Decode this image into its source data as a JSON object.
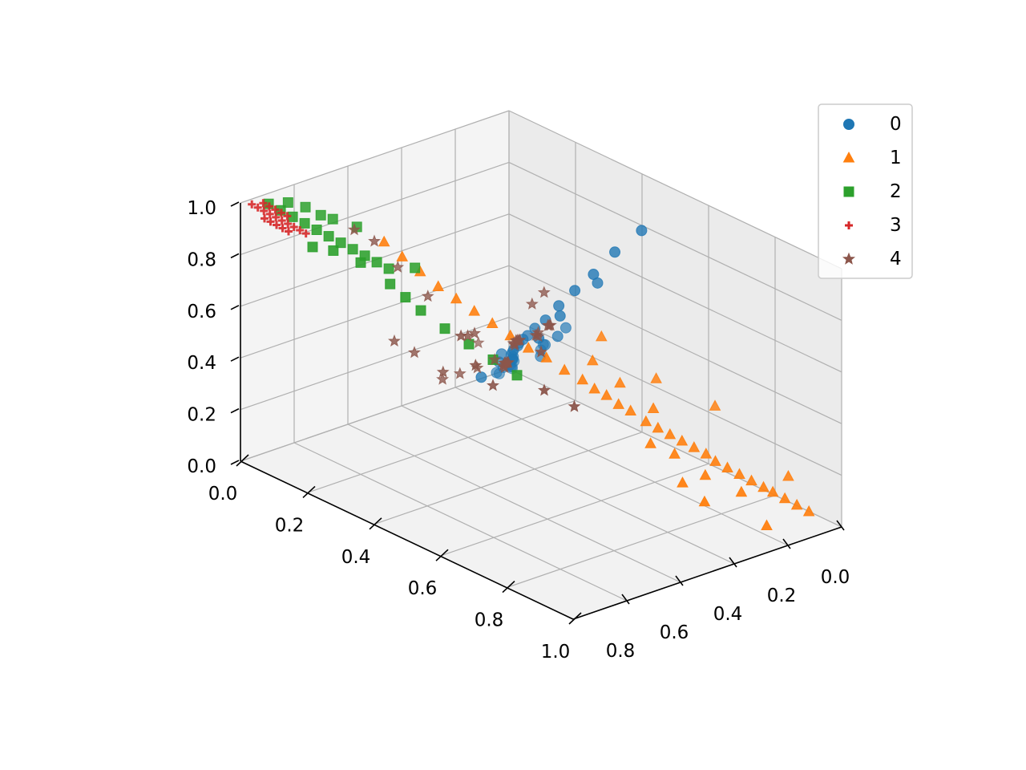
{
  "chart_data": {
    "type": "scatter",
    "projection": "3d",
    "title": "",
    "xlabel": "",
    "ylabel": "",
    "zlabel": "",
    "xlim": [
      0,
      1
    ],
    "ylim": [
      0,
      1
    ],
    "zlim": [
      0,
      1
    ],
    "xticks": [
      "0.0",
      "0.2",
      "0.4",
      "0.6",
      "0.8",
      "1.0"
    ],
    "yticks": [
      "0.0",
      "0.2",
      "0.4",
      "0.6",
      "0.8"
    ],
    "zticks": [
      "0.0",
      "0.2",
      "0.4",
      "0.6",
      "0.8",
      "1.0"
    ],
    "grid": true,
    "legend_position": "top-right",
    "series": [
      {
        "name": "0",
        "marker": "circle",
        "color": "#1f77b4",
        "points": [
          [
            0.05,
            0.05,
            0.05
          ],
          [
            0.07,
            0.08,
            0.08
          ],
          [
            0.09,
            0.1,
            0.1
          ],
          [
            0.1,
            0.12,
            0.12
          ],
          [
            0.12,
            0.13,
            0.15
          ],
          [
            0.13,
            0.15,
            0.17
          ],
          [
            0.15,
            0.17,
            0.2
          ],
          [
            0.16,
            0.19,
            0.22
          ],
          [
            0.18,
            0.21,
            0.25
          ],
          [
            0.2,
            0.23,
            0.28
          ],
          [
            0.22,
            0.24,
            0.31
          ],
          [
            0.24,
            0.26,
            0.34
          ],
          [
            0.26,
            0.27,
            0.37
          ],
          [
            0.29,
            0.29,
            0.41
          ],
          [
            0.32,
            0.3,
            0.46
          ],
          [
            0.36,
            0.31,
            0.52
          ],
          [
            0.4,
            0.31,
            0.6
          ],
          [
            0.44,
            0.3,
            0.68
          ],
          [
            0.48,
            0.28,
            0.76
          ],
          [
            0.52,
            0.25,
            0.86
          ],
          [
            0.56,
            0.2,
            0.95
          ],
          [
            0.12,
            0.17,
            0.14
          ],
          [
            0.18,
            0.26,
            0.23
          ],
          [
            0.22,
            0.3,
            0.3
          ],
          [
            0.16,
            0.08,
            0.2
          ],
          [
            0.2,
            0.12,
            0.26
          ],
          [
            0.27,
            0.2,
            0.33
          ],
          [
            0.31,
            0.37,
            0.36
          ],
          [
            0.28,
            0.45,
            0.3
          ],
          [
            0.24,
            0.18,
            0.26
          ],
          [
            0.34,
            0.24,
            0.42
          ],
          [
            0.38,
            0.36,
            0.48
          ],
          [
            0.14,
            0.22,
            0.15
          ],
          [
            0.1,
            0.16,
            0.1
          ],
          [
            0.3,
            0.16,
            0.4
          ],
          [
            0.26,
            0.33,
            0.3
          ],
          [
            0.42,
            0.33,
            0.58
          ],
          [
            0.46,
            0.24,
            0.7
          ]
        ]
      },
      {
        "name": "1",
        "marker": "triangle",
        "color": "#ff7f0e",
        "points": [
          [
            0.95,
            0.06,
            0.05
          ],
          [
            0.93,
            0.08,
            0.07
          ],
          [
            0.91,
            0.1,
            0.09
          ],
          [
            0.89,
            0.12,
            0.11
          ],
          [
            0.87,
            0.13,
            0.12
          ],
          [
            0.85,
            0.15,
            0.14
          ],
          [
            0.83,
            0.17,
            0.16
          ],
          [
            0.81,
            0.19,
            0.18
          ],
          [
            0.79,
            0.21,
            0.2
          ],
          [
            0.77,
            0.22,
            0.22
          ],
          [
            0.75,
            0.24,
            0.24
          ],
          [
            0.73,
            0.26,
            0.26
          ],
          [
            0.71,
            0.28,
            0.28
          ],
          [
            0.69,
            0.3,
            0.3
          ],
          [
            0.67,
            0.32,
            0.32
          ],
          [
            0.64,
            0.34,
            0.35
          ],
          [
            0.62,
            0.36,
            0.37
          ],
          [
            0.6,
            0.38,
            0.4
          ],
          [
            0.58,
            0.4,
            0.42
          ],
          [
            0.56,
            0.42,
            0.45
          ],
          [
            0.53,
            0.45,
            0.48
          ],
          [
            0.5,
            0.48,
            0.52
          ],
          [
            0.47,
            0.51,
            0.55
          ],
          [
            0.44,
            0.54,
            0.59
          ],
          [
            0.41,
            0.57,
            0.63
          ],
          [
            0.38,
            0.6,
            0.67
          ],
          [
            0.35,
            0.63,
            0.71
          ],
          [
            0.32,
            0.66,
            0.75
          ],
          [
            0.29,
            0.69,
            0.8
          ],
          [
            0.26,
            0.72,
            0.85
          ],
          [
            0.23,
            0.75,
            0.9
          ],
          [
            0.86,
            0.2,
            0.12
          ],
          [
            0.8,
            0.26,
            0.17
          ],
          [
            0.74,
            0.3,
            0.23
          ],
          [
            0.7,
            0.34,
            0.26
          ],
          [
            0.66,
            0.28,
            0.35
          ],
          [
            0.6,
            0.33,
            0.43
          ],
          [
            0.55,
            0.37,
            0.5
          ],
          [
            0.83,
            0.3,
            0.1
          ],
          [
            0.78,
            0.32,
            0.15
          ],
          [
            0.7,
            0.1,
            0.32
          ],
          [
            0.62,
            0.22,
            0.42
          ],
          [
            0.52,
            0.3,
            0.55
          ],
          [
            0.88,
            0.05,
            0.14
          ],
          [
            0.92,
            0.18,
            0.02
          ]
        ]
      },
      {
        "name": "2",
        "marker": "square",
        "color": "#2ca02c",
        "points": [
          [
            0.02,
            0.92,
            0.98
          ],
          [
            0.04,
            0.9,
            0.96
          ],
          [
            0.06,
            0.88,
            0.94
          ],
          [
            0.08,
            0.86,
            0.92
          ],
          [
            0.1,
            0.84,
            0.9
          ],
          [
            0.03,
            0.86,
            0.97
          ],
          [
            0.12,
            0.82,
            0.88
          ],
          [
            0.14,
            0.8,
            0.86
          ],
          [
            0.05,
            0.82,
            0.95
          ],
          [
            0.08,
            0.8,
            0.93
          ],
          [
            0.16,
            0.78,
            0.84
          ],
          [
            0.18,
            0.76,
            0.82
          ],
          [
            0.2,
            0.74,
            0.8
          ],
          [
            0.22,
            0.72,
            0.78
          ],
          [
            0.24,
            0.74,
            0.74
          ],
          [
            0.27,
            0.72,
            0.7
          ],
          [
            0.3,
            0.7,
            0.66
          ],
          [
            0.34,
            0.66,
            0.6
          ],
          [
            0.38,
            0.62,
            0.55
          ],
          [
            0.42,
            0.58,
            0.5
          ],
          [
            0.46,
            0.54,
            0.45
          ],
          [
            0.12,
            0.88,
            0.86
          ],
          [
            0.15,
            0.84,
            0.85
          ],
          [
            0.1,
            0.78,
            0.92
          ],
          [
            0.14,
            0.74,
            0.9
          ],
          [
            0.2,
            0.8,
            0.82
          ],
          [
            0.25,
            0.66,
            0.78
          ]
        ]
      },
      {
        "name": "3",
        "marker": "plus",
        "color": "#d62728",
        "points": [
          [
            0.01,
            0.97,
            0.99
          ],
          [
            0.02,
            0.96,
            0.98
          ],
          [
            0.03,
            0.95,
            0.97
          ],
          [
            0.04,
            0.94,
            0.96
          ],
          [
            0.05,
            0.93,
            0.95
          ],
          [
            0.06,
            0.92,
            0.94
          ],
          [
            0.07,
            0.91,
            0.93
          ],
          [
            0.02,
            0.94,
            0.99
          ],
          [
            0.03,
            0.93,
            0.98
          ],
          [
            0.04,
            0.92,
            0.97
          ],
          [
            0.05,
            0.91,
            0.96
          ],
          [
            0.06,
            0.9,
            0.95
          ],
          [
            0.08,
            0.9,
            0.92
          ],
          [
            0.09,
            0.89,
            0.91
          ],
          [
            0.1,
            0.88,
            0.9
          ],
          [
            0.04,
            0.96,
            0.95
          ],
          [
            0.05,
            0.95,
            0.94
          ],
          [
            0.06,
            0.94,
            0.93
          ],
          [
            0.07,
            0.93,
            0.92
          ],
          [
            0.08,
            0.92,
            0.91
          ]
        ]
      },
      {
        "name": "4",
        "marker": "star",
        "color": "#8c564b",
        "points": [
          [
            0.3,
            0.35,
            0.4
          ],
          [
            0.32,
            0.38,
            0.43
          ],
          [
            0.34,
            0.4,
            0.45
          ],
          [
            0.36,
            0.42,
            0.48
          ],
          [
            0.38,
            0.44,
            0.5
          ],
          [
            0.4,
            0.46,
            0.52
          ],
          [
            0.42,
            0.48,
            0.54
          ],
          [
            0.35,
            0.45,
            0.38
          ],
          [
            0.37,
            0.48,
            0.41
          ],
          [
            0.39,
            0.5,
            0.44
          ],
          [
            0.41,
            0.52,
            0.46
          ],
          [
            0.43,
            0.54,
            0.48
          ],
          [
            0.45,
            0.56,
            0.5
          ],
          [
            0.28,
            0.4,
            0.35
          ],
          [
            0.26,
            0.44,
            0.32
          ],
          [
            0.24,
            0.48,
            0.3
          ],
          [
            0.22,
            0.52,
            0.28
          ],
          [
            0.33,
            0.3,
            0.45
          ],
          [
            0.31,
            0.28,
            0.42
          ],
          [
            0.29,
            0.26,
            0.4
          ],
          [
            0.44,
            0.4,
            0.58
          ],
          [
            0.46,
            0.42,
            0.6
          ],
          [
            0.48,
            0.44,
            0.62
          ],
          [
            0.3,
            0.5,
            0.5
          ],
          [
            0.32,
            0.55,
            0.52
          ],
          [
            0.34,
            0.6,
            0.55
          ],
          [
            0.2,
            0.6,
            0.4
          ],
          [
            0.18,
            0.65,
            0.45
          ],
          [
            0.4,
            0.62,
            0.48
          ],
          [
            0.5,
            0.5,
            0.55
          ],
          [
            0.15,
            0.3,
            0.3
          ],
          [
            0.25,
            0.2,
            0.35
          ],
          [
            0.36,
            0.36,
            0.6
          ],
          [
            0.38,
            0.34,
            0.65
          ],
          [
            0.2,
            0.55,
            0.6
          ],
          [
            0.15,
            0.6,
            0.7
          ],
          [
            0.12,
            0.65,
            0.8
          ],
          [
            0.1,
            0.7,
            0.85
          ],
          [
            0.55,
            0.55,
            0.45
          ],
          [
            0.6,
            0.5,
            0.4
          ],
          [
            0.27,
            0.58,
            0.36
          ],
          [
            0.42,
            0.58,
            0.4
          ]
        ]
      }
    ]
  }
}
